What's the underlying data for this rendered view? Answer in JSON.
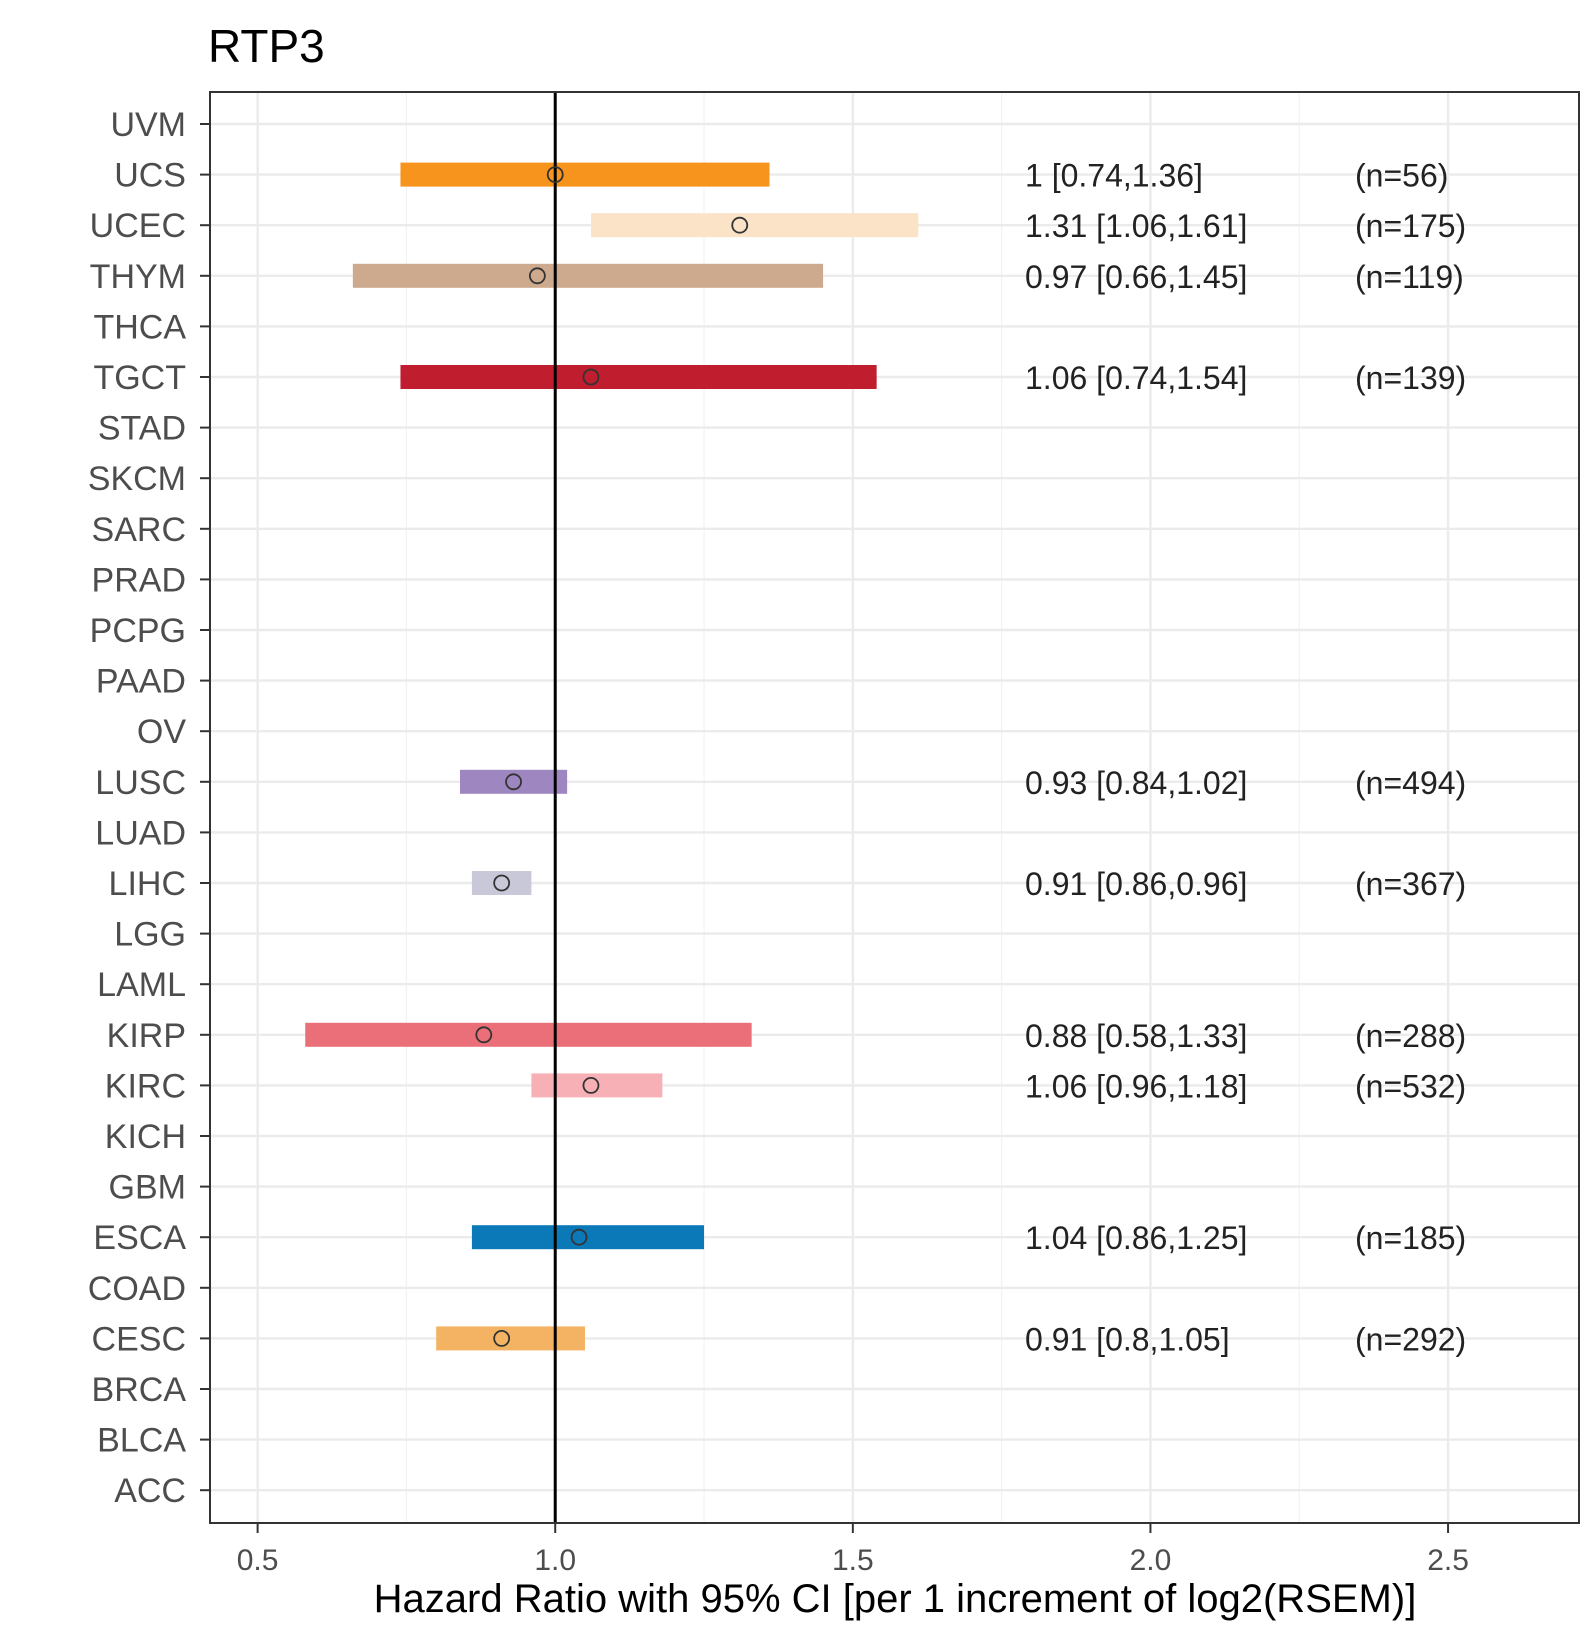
{
  "chart_data": {
    "type": "forest",
    "title": "RTP3",
    "xlabel": "Hazard Ratio with 95% CI [per 1 increment of log2(RSEM)]",
    "ylabel": "",
    "xlim": [
      0.42,
      2.72
    ],
    "x_ticks": [
      "0.5",
      "1.0",
      "1.5",
      "2.0",
      "2.5"
    ],
    "x_tick_values": [
      0.5,
      1.0,
      1.5,
      2.0,
      2.5
    ],
    "reference_line": 1.0,
    "grid": true,
    "categories": [
      "UVM",
      "UCS",
      "UCEC",
      "THYM",
      "THCA",
      "TGCT",
      "STAD",
      "SKCM",
      "SARC",
      "PRAD",
      "PCPG",
      "PAAD",
      "OV",
      "LUSC",
      "LUAD",
      "LIHC",
      "LGG",
      "LAML",
      "KIRP",
      "KIRC",
      "KICH",
      "GBM",
      "ESCA",
      "COAD",
      "CESC",
      "BRCA",
      "BLCA",
      "ACC"
    ],
    "rows": [
      {
        "cancer": "UCS",
        "hr": 1.0,
        "lower": 0.74,
        "upper": 1.36,
        "label": "1 [0.74,1.36]",
        "n": "(n=56)",
        "color": "#F7941D"
      },
      {
        "cancer": "UCEC",
        "hr": 1.31,
        "lower": 1.06,
        "upper": 1.61,
        "label": "1.31 [1.06,1.61]",
        "n": "(n=175)",
        "color": "#FAE3C6"
      },
      {
        "cancer": "THYM",
        "hr": 0.97,
        "lower": 0.66,
        "upper": 1.45,
        "label": "0.97 [0.66,1.45]",
        "n": "(n=119)",
        "color": "#CDAA8E"
      },
      {
        "cancer": "TGCT",
        "hr": 1.06,
        "lower": 0.74,
        "upper": 1.54,
        "label": "1.06 [0.74,1.54]",
        "n": "(n=139)",
        "color": "#C01D2E"
      },
      {
        "cancer": "LUSC",
        "hr": 0.93,
        "lower": 0.84,
        "upper": 1.02,
        "label": "0.93 [0.84,1.02]",
        "n": "(n=494)",
        "color": "#9E87C0"
      },
      {
        "cancer": "LIHC",
        "hr": 0.91,
        "lower": 0.86,
        "upper": 0.96,
        "label": "0.91 [0.86,0.96]",
        "n": "(n=367)",
        "color": "#C8C8D8"
      },
      {
        "cancer": "KIRP",
        "hr": 0.88,
        "lower": 0.58,
        "upper": 1.33,
        "label": "0.88 [0.58,1.33]",
        "n": "(n=288)",
        "color": "#EA6F78"
      },
      {
        "cancer": "KIRC",
        "hr": 1.06,
        "lower": 0.96,
        "upper": 1.18,
        "label": "1.06 [0.96,1.18]",
        "n": "(n=532)",
        "color": "#F7B0B6"
      },
      {
        "cancer": "ESCA",
        "hr": 1.04,
        "lower": 0.86,
        "upper": 1.25,
        "label": "1.04 [0.86,1.25]",
        "n": "(n=185)",
        "color": "#0B79B8"
      },
      {
        "cancer": "CESC",
        "hr": 0.91,
        "lower": 0.8,
        "upper": 1.05,
        "label": "0.91 [0.8,1.05]",
        "n": "(n=292)",
        "color": "#F4B363"
      }
    ]
  }
}
